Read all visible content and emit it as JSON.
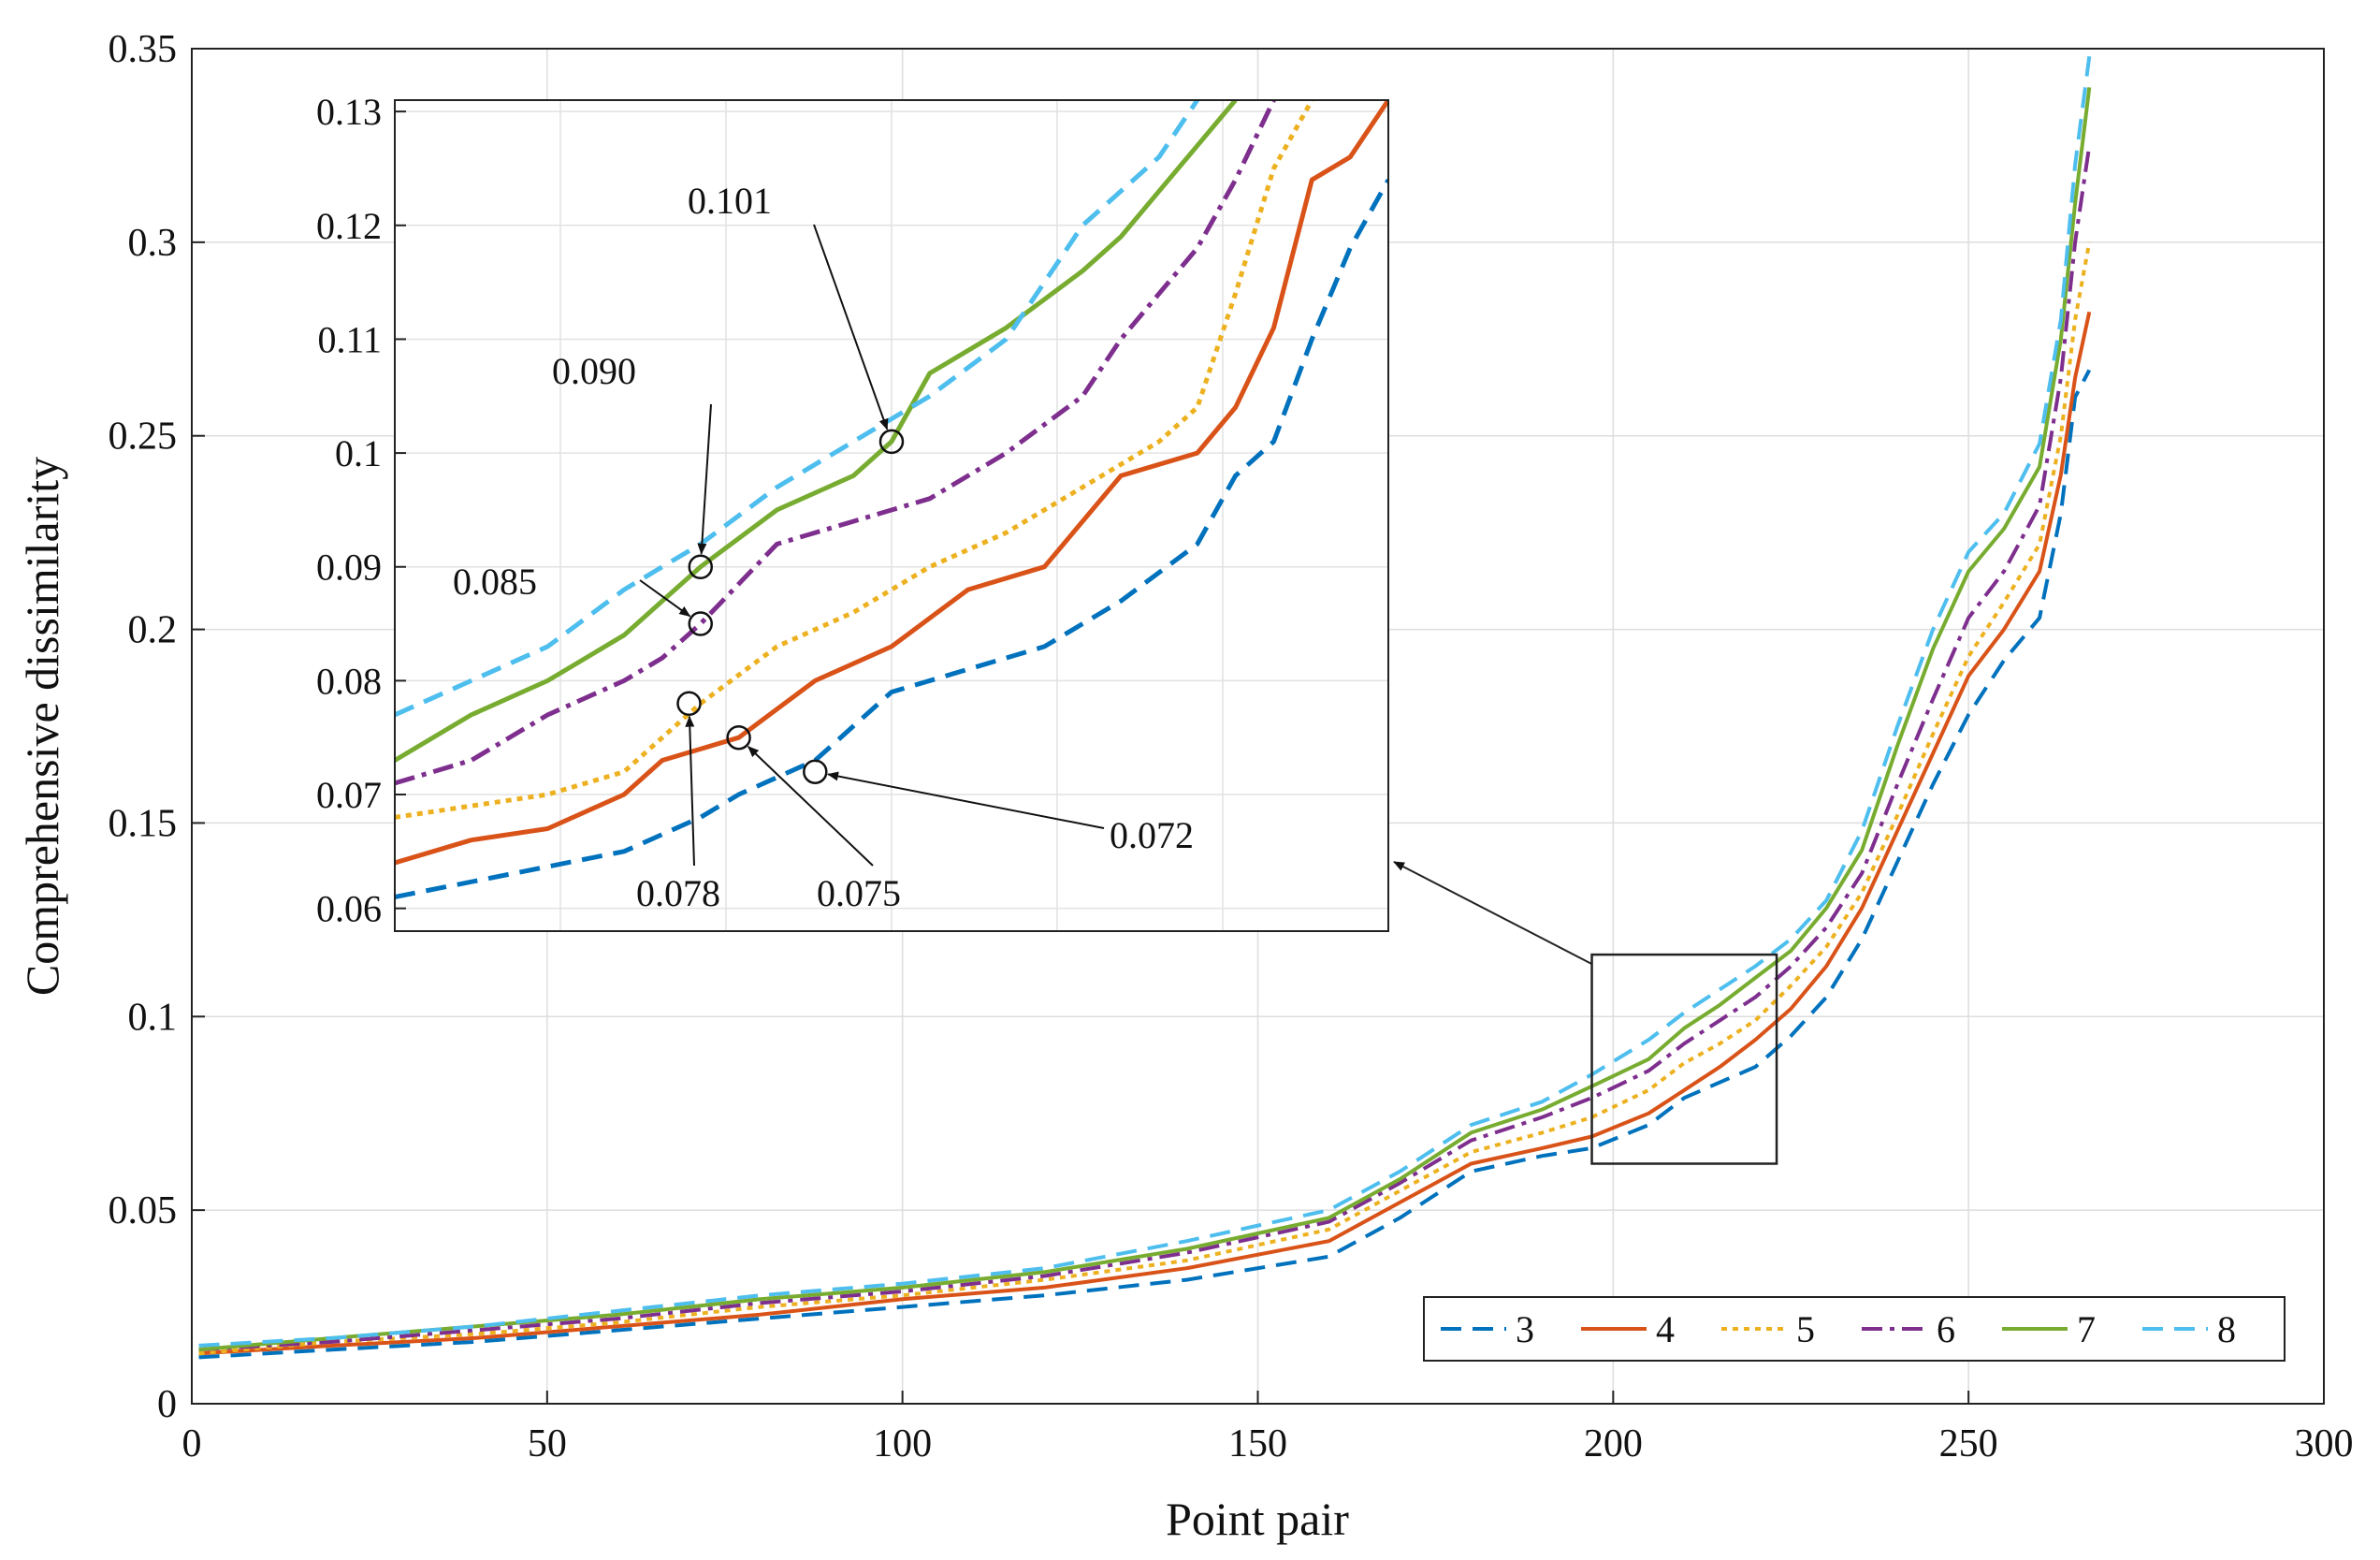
{
  "chart_data": {
    "type": "line",
    "title": "",
    "xlabel": "Point pair",
    "ylabel": "Comprehensive dissimilarity",
    "xlim": [
      0,
      300
    ],
    "ylim": [
      0,
      0.35
    ],
    "grid": true,
    "x_ticks": [
      0,
      50,
      100,
      150,
      200,
      250,
      300
    ],
    "x_tick_labels": [
      "0",
      "50",
      "100",
      "150",
      "200",
      "250",
      "300"
    ],
    "y_ticks": [
      0,
      0.05,
      0.1,
      0.15,
      0.2,
      0.25,
      0.3,
      0.35
    ],
    "y_tick_labels": [
      "0",
      "0.05",
      "0.1",
      "0.15",
      "0.2",
      "0.25",
      "0.3",
      "0.35"
    ],
    "legend_position": "bottom-right",
    "series": [
      {
        "name": "3",
        "color": "#0072BD",
        "dash": "dashed",
        "x": [
          1,
          20,
          40,
          60,
          80,
          100,
          120,
          140,
          160,
          170,
          180,
          190,
          197,
          205,
          210,
          215,
          220,
          225,
          230,
          235,
          240,
          245,
          250,
          255,
          260,
          263,
          265,
          267
        ],
        "y": [
          0.012,
          0.014,
          0.016,
          0.019,
          0.022,
          0.025,
          0.028,
          0.032,
          0.038,
          0.048,
          0.06,
          0.064,
          0.066,
          0.072,
          0.079,
          0.083,
          0.087,
          0.095,
          0.105,
          0.12,
          0.14,
          0.16,
          0.178,
          0.192,
          0.203,
          0.23,
          0.26,
          0.267
        ]
      },
      {
        "name": "4",
        "color": "#D95319",
        "dash": "solid",
        "x": [
          1,
          20,
          40,
          60,
          80,
          100,
          120,
          140,
          160,
          170,
          180,
          190,
          197,
          205,
          210,
          215,
          220,
          225,
          230,
          235,
          240,
          245,
          250,
          255,
          260,
          263,
          265,
          267
        ],
        "y": [
          0.013,
          0.015,
          0.017,
          0.02,
          0.023,
          0.027,
          0.03,
          0.035,
          0.042,
          0.052,
          0.062,
          0.066,
          0.069,
          0.075,
          0.081,
          0.087,
          0.094,
          0.102,
          0.113,
          0.128,
          0.148,
          0.168,
          0.188,
          0.2,
          0.215,
          0.24,
          0.265,
          0.282
        ]
      },
      {
        "name": "5",
        "color": "#EDB120",
        "dash": "dotted",
        "x": [
          1,
          20,
          40,
          60,
          80,
          100,
          120,
          140,
          160,
          170,
          180,
          190,
          197,
          205,
          210,
          215,
          220,
          225,
          230,
          235,
          240,
          245,
          250,
          255,
          260,
          263,
          265,
          267
        ],
        "y": [
          0.013,
          0.016,
          0.018,
          0.021,
          0.025,
          0.028,
          0.032,
          0.037,
          0.045,
          0.055,
          0.065,
          0.07,
          0.074,
          0.081,
          0.088,
          0.093,
          0.099,
          0.108,
          0.118,
          0.132,
          0.152,
          0.173,
          0.193,
          0.207,
          0.222,
          0.25,
          0.28,
          0.3
        ]
      },
      {
        "name": "6",
        "color": "#7E2F8E",
        "dash": "dashdot",
        "x": [
          1,
          20,
          40,
          60,
          80,
          100,
          120,
          140,
          160,
          170,
          180,
          190,
          197,
          205,
          210,
          215,
          220,
          225,
          230,
          235,
          240,
          245,
          250,
          255,
          260,
          263,
          265,
          267
        ],
        "y": [
          0.014,
          0.016,
          0.019,
          0.022,
          0.026,
          0.029,
          0.033,
          0.039,
          0.047,
          0.057,
          0.068,
          0.074,
          0.079,
          0.086,
          0.093,
          0.099,
          0.105,
          0.113,
          0.123,
          0.137,
          0.16,
          0.182,
          0.203,
          0.215,
          0.232,
          0.265,
          0.3,
          0.325
        ]
      },
      {
        "name": "7",
        "color": "#77AC30",
        "dash": "solid",
        "x": [
          1,
          20,
          40,
          60,
          80,
          100,
          120,
          140,
          160,
          170,
          180,
          190,
          197,
          205,
          210,
          215,
          220,
          225,
          230,
          235,
          240,
          245,
          250,
          255,
          260,
          263,
          265,
          267
        ],
        "y": [
          0.014,
          0.017,
          0.02,
          0.023,
          0.027,
          0.03,
          0.034,
          0.04,
          0.048,
          0.058,
          0.07,
          0.076,
          0.082,
          0.089,
          0.097,
          0.103,
          0.11,
          0.117,
          0.128,
          0.143,
          0.17,
          0.195,
          0.215,
          0.226,
          0.242,
          0.275,
          0.31,
          0.34
        ]
      },
      {
        "name": "8",
        "color": "#4DBEEE",
        "dash": "dashed",
        "x": [
          1,
          20,
          40,
          60,
          80,
          100,
          120,
          140,
          160,
          170,
          180,
          190,
          197,
          205,
          210,
          215,
          220,
          225,
          230,
          235,
          240,
          245,
          250,
          255,
          260,
          263,
          265,
          267
        ],
        "y": [
          0.015,
          0.017,
          0.02,
          0.024,
          0.028,
          0.031,
          0.035,
          0.042,
          0.05,
          0.06,
          0.072,
          0.078,
          0.085,
          0.094,
          0.101,
          0.107,
          0.113,
          0.12,
          0.13,
          0.148,
          0.175,
          0.2,
          0.22,
          0.23,
          0.248,
          0.28,
          0.32,
          0.348
        ]
      }
    ],
    "inset": {
      "xlim": [
        197,
        223
      ],
      "ylim": [
        0.058,
        0.131
      ],
      "y_ticks": [
        0.06,
        0.07,
        0.08,
        0.09,
        0.1,
        0.11,
        0.12,
        0.13
      ],
      "y_tick_labels": [
        "0.06",
        "0.07",
        "0.08",
        "0.09",
        "0.1",
        "0.11",
        "0.12",
        "0.13"
      ],
      "series": [
        {
          "name": "3",
          "x": [
            197,
            200,
            203,
            205,
            206,
            208,
            210,
            212,
            214,
            216,
            218,
            219,
            220,
            221,
            222,
            223
          ],
          "y": [
            0.061,
            0.063,
            0.065,
            0.068,
            0.07,
            0.073,
            0.079,
            0.081,
            0.083,
            0.087,
            0.092,
            0.098,
            0.101,
            0.11,
            0.118,
            0.124
          ]
        },
        {
          "name": "4",
          "x": [
            197,
            199,
            201,
            203,
            204,
            206,
            208,
            210,
            212,
            214,
            216,
            218,
            219,
            220,
            221,
            222,
            223
          ],
          "y": [
            0.064,
            0.066,
            0.067,
            0.07,
            0.073,
            0.075,
            0.08,
            0.083,
            0.088,
            0.09,
            0.098,
            0.1,
            0.104,
            0.111,
            0.124,
            0.126,
            0.131
          ]
        },
        {
          "name": "5",
          "x": [
            197,
            199,
            201,
            203,
            204,
            205,
            207,
            209,
            211,
            213,
            215,
            217,
            218,
            219,
            220,
            221
          ],
          "y": [
            0.068,
            0.069,
            0.07,
            0.072,
            0.075,
            0.078,
            0.083,
            0.086,
            0.09,
            0.093,
            0.097,
            0.101,
            0.104,
            0.114,
            0.125,
            0.131
          ]
        },
        {
          "name": "6",
          "x": [
            197,
            199,
            201,
            203,
            204,
            205,
            207,
            209,
            211,
            213,
            215,
            216,
            217,
            218,
            219,
            220
          ],
          "y": [
            0.071,
            0.073,
            0.077,
            0.08,
            0.082,
            0.085,
            0.092,
            0.094,
            0.096,
            0.1,
            0.105,
            0.11,
            0.114,
            0.118,
            0.124,
            0.131
          ]
        },
        {
          "name": "7",
          "x": [
            197,
            199,
            201,
            203,
            204,
            205,
            207,
            209,
            210,
            211,
            213,
            215,
            216,
            217,
            218,
            219
          ],
          "y": [
            0.073,
            0.077,
            0.08,
            0.084,
            0.087,
            0.09,
            0.095,
            0.098,
            0.101,
            0.107,
            0.111,
            0.116,
            0.119,
            0.123,
            0.127,
            0.131
          ]
        },
        {
          "name": "8",
          "x": [
            197,
            199,
            201,
            203,
            204,
            205,
            207,
            209,
            211,
            213,
            214,
            215,
            216,
            217,
            218
          ],
          "y": [
            0.077,
            0.08,
            0.083,
            0.088,
            0.09,
            0.092,
            0.097,
            0.101,
            0.105,
            0.11,
            0.115,
            0.12,
            0.123,
            0.126,
            0.131
          ]
        }
      ],
      "annotations": [
        {
          "label": "0.101",
          "x": 210.0,
          "y": 0.101
        },
        {
          "label": "0.090",
          "x": 205.0,
          "y": 0.09
        },
        {
          "label": "0.085",
          "x": 205.0,
          "y": 0.085
        },
        {
          "label": "0.078",
          "x": 204.7,
          "y": 0.078
        },
        {
          "label": "0.075",
          "x": 206.0,
          "y": 0.075
        },
        {
          "label": "0.072",
          "x": 208.0,
          "y": 0.072
        }
      ]
    }
  }
}
